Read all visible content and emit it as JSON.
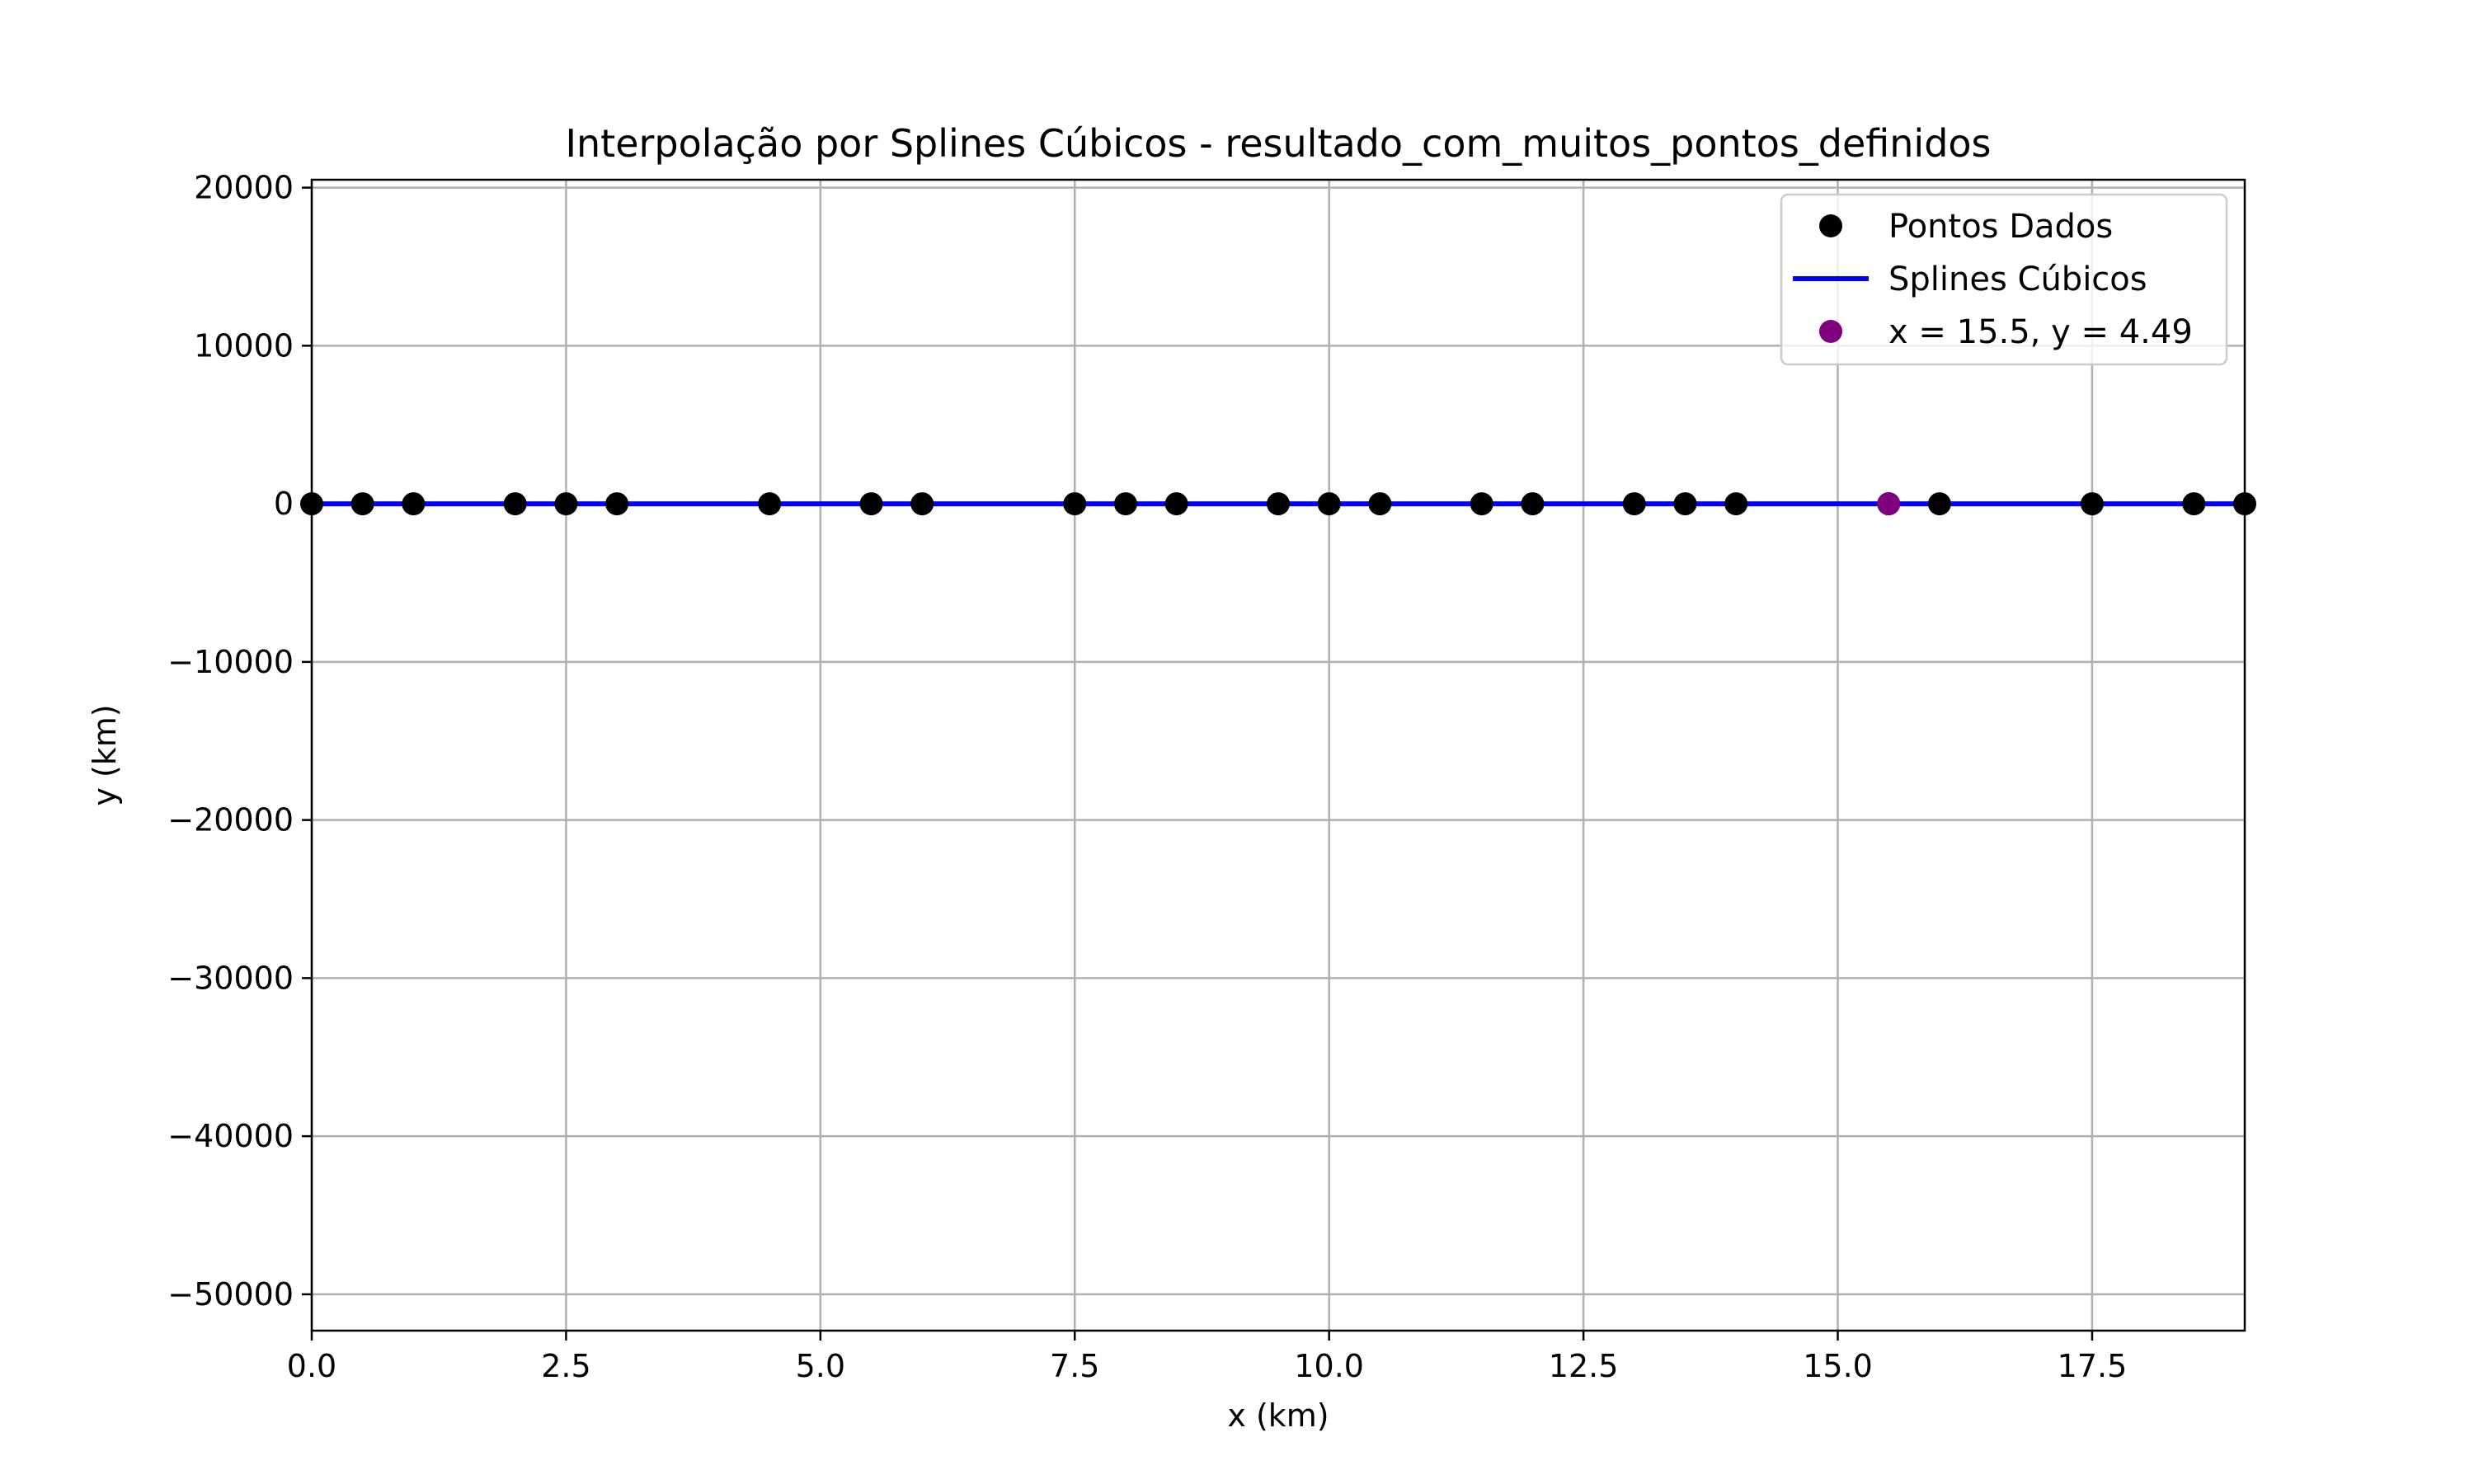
{
  "chart_data": {
    "type": "line",
    "title": "Interpolação por Splines Cúbicos - resultado_com_muitos_pontos_definidos",
    "xlabel": "x (km)",
    "ylabel": "y (km)",
    "xlim": [
      0,
      19
    ],
    "ylim": [
      -52300,
      20500
    ],
    "x_ticks": [
      0,
      2.5,
      5,
      7.5,
      10,
      12.5,
      15,
      17.5
    ],
    "x_tick_labels": [
      "0.0",
      "2.5",
      "5.0",
      "7.5",
      "10.0",
      "12.5",
      "15.0",
      "17.5"
    ],
    "y_ticks": [
      20000,
      10000,
      0,
      -10000,
      -20000,
      -30000,
      -40000,
      -50000
    ],
    "y_tick_labels": [
      "20000",
      "10000",
      "0",
      "−10000",
      "−20000",
      "−30000",
      "−40000",
      "−50000"
    ],
    "grid": true,
    "legend_position": "top-right",
    "series": [
      {
        "name": "Pontos Dados",
        "kind": "scatter",
        "color": "#000000",
        "x": [
          0,
          0.5,
          1,
          2,
          2.5,
          3,
          4.5,
          5.5,
          6,
          7.5,
          8,
          8.5,
          9.5,
          10,
          10.5,
          11.5,
          12,
          13,
          13.5,
          14,
          15.5,
          16,
          17.5,
          18.5,
          19
        ],
        "y": [
          0,
          0,
          0,
          0,
          0,
          0,
          0,
          0,
          0,
          0,
          0,
          0,
          0,
          0,
          0,
          0,
          0,
          0,
          0,
          0,
          0,
          0,
          0,
          0,
          0
        ]
      },
      {
        "name": "Splines Cúbicos",
        "kind": "line",
        "color": "#0000ff",
        "x": [
          0,
          19
        ],
        "y": [
          0,
          0
        ]
      },
      {
        "name": "x = 15.5, y = 4.49",
        "kind": "point",
        "color": "#800080",
        "x": [
          15.5
        ],
        "y": [
          4.49
        ]
      }
    ]
  }
}
